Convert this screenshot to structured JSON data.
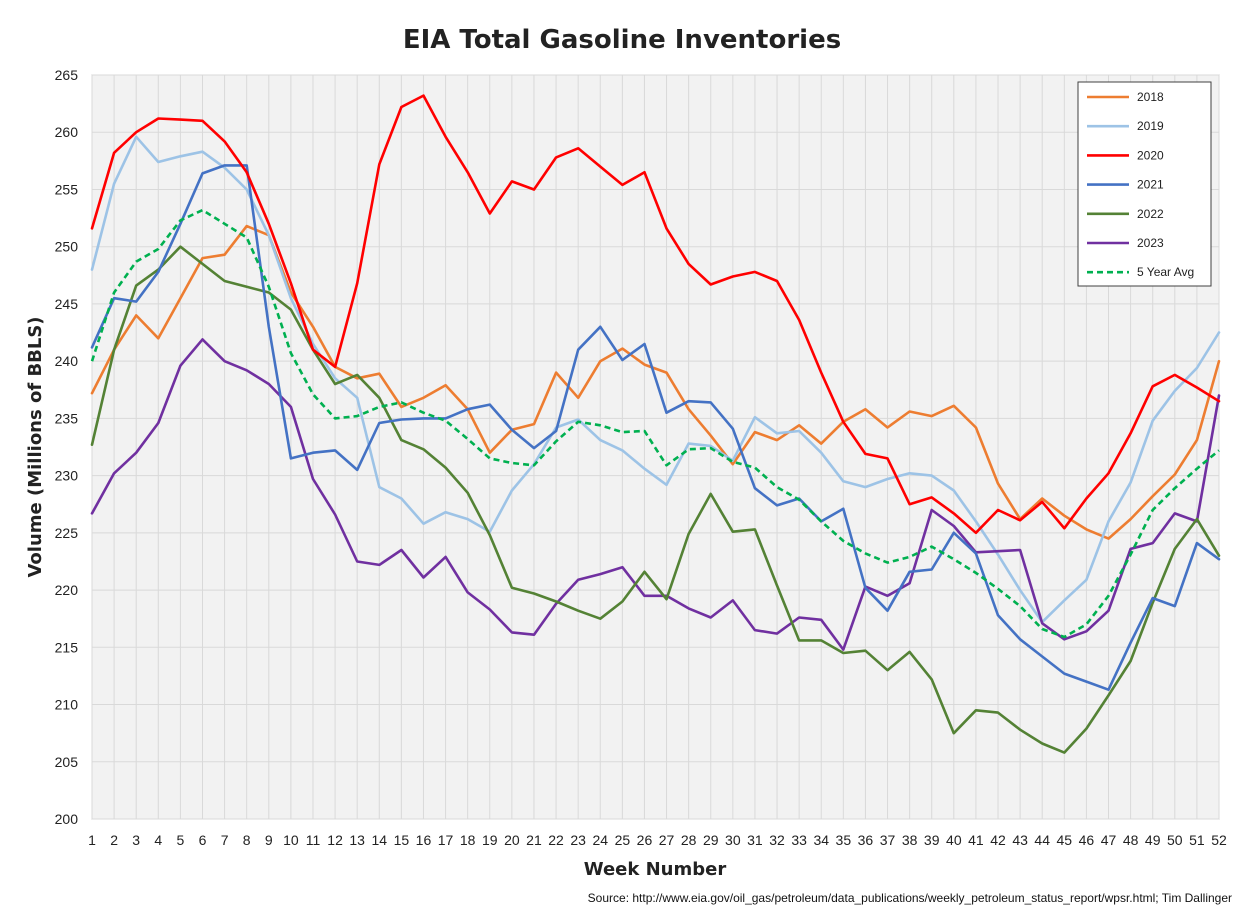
{
  "chart_data": {
    "type": "line",
    "title": "EIA Total Gasoline Inventories",
    "xlabel": "Week Number",
    "ylabel": "Volume (Millions of BBLS)",
    "source": "Source: http://www.eia.gov/oil_gas/petroleum/data_publications/weekly_petroleum_status_report/wpsr.html; Tim Dallinger",
    "xlim": [
      1,
      52
    ],
    "ylim": [
      200,
      265
    ],
    "yticks": [
      200,
      205,
      210,
      215,
      220,
      225,
      230,
      235,
      240,
      245,
      250,
      255,
      260,
      265
    ],
    "grid": true,
    "legend_position": "top-right",
    "x": [
      1,
      2,
      3,
      4,
      5,
      6,
      7,
      8,
      9,
      10,
      11,
      12,
      13,
      14,
      15,
      16,
      17,
      18,
      19,
      20,
      21,
      22,
      23,
      24,
      25,
      26,
      27,
      28,
      29,
      30,
      31,
      32,
      33,
      34,
      35,
      36,
      37,
      38,
      39,
      40,
      41,
      42,
      43,
      44,
      45,
      46,
      47,
      48,
      49,
      50,
      51,
      52
    ],
    "series": [
      {
        "name": "2018",
        "color": "#ED7D31",
        "dashed": false,
        "values": [
          237.2,
          241.0,
          244.0,
          242.0,
          245.5,
          249.0,
          249.3,
          251.8,
          251.0,
          246.0,
          243.0,
          239.5,
          238.5,
          238.9,
          236.0,
          236.8,
          237.9,
          235.8,
          232.0,
          234.0,
          234.5,
          239.0,
          236.8,
          240.0,
          241.1,
          239.7,
          239.0,
          235.8,
          233.5,
          231.0,
          233.8,
          233.1,
          234.4,
          232.8,
          234.7,
          235.8,
          234.2,
          235.6,
          235.2,
          236.1,
          234.2,
          229.3,
          226.2,
          228.0,
          226.5,
          225.3,
          224.5,
          226.2,
          228.2,
          230.1,
          233.1,
          240.0
        ]
      },
      {
        "name": "2019",
        "color": "#9DC3E6",
        "dashed": false,
        "values": [
          248.0,
          255.5,
          259.6,
          257.4,
          257.9,
          258.3,
          256.9,
          255.0,
          251.0,
          245.5,
          241.5,
          238.5,
          236.8,
          229.0,
          228.0,
          225.8,
          226.8,
          226.2,
          225.1,
          228.7,
          231.0,
          234.2,
          234.9,
          233.1,
          232.2,
          230.6,
          229.2,
          232.8,
          232.6,
          231.3,
          235.1,
          233.7,
          233.9,
          232.0,
          229.5,
          229.0,
          229.7,
          230.2,
          230.0,
          228.7,
          226.0,
          223.1,
          220.0,
          217.2,
          219.1,
          220.9,
          226.0,
          229.4,
          234.8,
          237.4,
          239.4,
          242.5
        ]
      },
      {
        "name": "2020",
        "color": "#FF0000",
        "dashed": false,
        "values": [
          251.6,
          258.2,
          260.0,
          261.2,
          261.1,
          261.0,
          259.2,
          256.5,
          252.0,
          246.8,
          241.0,
          239.5,
          246.8,
          257.2,
          262.2,
          263.2,
          259.6,
          256.5,
          252.9,
          255.7,
          255.0,
          257.8,
          258.6,
          257.0,
          255.4,
          256.5,
          251.6,
          248.5,
          246.7,
          247.4,
          247.8,
          247.0,
          243.6,
          239.0,
          234.7,
          231.9,
          231.5,
          227.5,
          228.1,
          226.7,
          225.0,
          227.0,
          226.1,
          227.7,
          225.4,
          228.0,
          230.2,
          233.7,
          237.8,
          238.8,
          237.7,
          236.5
        ]
      },
      {
        "name": "2021",
        "color": "#4472C4",
        "dashed": false,
        "values": [
          241.2,
          245.5,
          245.2,
          247.8,
          252.0,
          256.4,
          257.1,
          257.1,
          243.0,
          231.5,
          232.0,
          232.2,
          230.5,
          234.6,
          234.9,
          235.0,
          235.0,
          235.8,
          236.2,
          234.0,
          232.4,
          233.9,
          241.0,
          243.0,
          240.1,
          241.5,
          235.5,
          236.5,
          236.4,
          234.1,
          228.9,
          227.4,
          228.0,
          226.0,
          227.1,
          220.2,
          218.2,
          221.6,
          221.8,
          225.0,
          223.2,
          217.8,
          215.7,
          214.2,
          212.7,
          212.0,
          211.3,
          215.4,
          219.3,
          218.6,
          224.1,
          222.7
        ]
      },
      {
        "name": "2022",
        "color": "#548235",
        "dashed": false,
        "values": [
          232.7,
          241.0,
          246.6,
          248.0,
          250.0,
          248.5,
          247.0,
          246.5,
          246.0,
          244.5,
          241.0,
          238.0,
          238.8,
          236.8,
          233.1,
          232.3,
          230.7,
          228.5,
          224.8,
          220.2,
          219.7,
          219.0,
          218.2,
          217.5,
          219.0,
          221.6,
          219.2,
          224.9,
          228.4,
          225.1,
          225.3,
          220.4,
          215.6,
          215.6,
          214.5,
          214.7,
          213.0,
          214.6,
          212.2,
          207.5,
          209.5,
          209.3,
          207.8,
          206.6,
          205.8,
          207.9,
          210.8,
          213.8,
          218.9,
          223.6,
          226.2,
          223.0
        ]
      },
      {
        "name": "2023",
        "color": "#7030A0",
        "dashed": false,
        "values": [
          226.7,
          230.2,
          232.0,
          234.6,
          239.6,
          241.9,
          240.0,
          239.2,
          238.0,
          236.0,
          229.7,
          226.6,
          222.5,
          222.2,
          223.5,
          221.1,
          222.9,
          219.8,
          218.3,
          216.3,
          216.1,
          218.8,
          220.9,
          221.4,
          222.0,
          219.5,
          219.5,
          218.4,
          217.6,
          219.1,
          216.5,
          216.2,
          217.6,
          217.4,
          214.8,
          220.3,
          219.5,
          220.6,
          227.0,
          225.6,
          223.3,
          223.4,
          223.5,
          217.1,
          215.7,
          216.4,
          218.2,
          223.6,
          224.1,
          226.7,
          226.0,
          237.0
        ]
      },
      {
        "name": "5 Year Avg",
        "color": "#00B050",
        "dashed": true,
        "values": [
          240.0,
          246.0,
          248.7,
          249.8,
          252.3,
          253.2,
          252.0,
          250.8,
          246.5,
          240.7,
          237.1,
          235.0,
          235.2,
          236.0,
          236.4,
          235.5,
          234.8,
          233.2,
          231.5,
          231.1,
          230.9,
          233.0,
          234.7,
          234.4,
          233.8,
          233.9,
          230.9,
          232.3,
          232.4,
          231.2,
          230.7,
          229.0,
          227.9,
          226.0,
          224.3,
          223.2,
          222.4,
          222.9,
          223.8,
          222.7,
          221.5,
          220.1,
          218.6,
          216.6,
          215.9,
          217.0,
          219.5,
          223.1,
          227.0,
          228.9,
          230.6,
          232.2
        ]
      }
    ]
  }
}
